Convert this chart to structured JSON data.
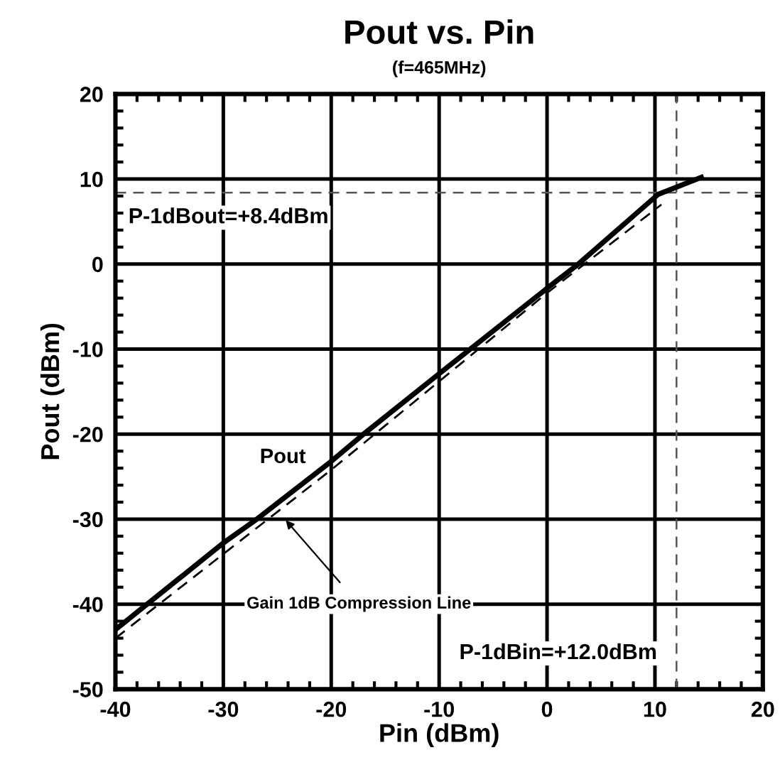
{
  "chart_data": {
    "type": "line",
    "title": "Pout vs. Pin",
    "subtitle": "(f=465MHz)",
    "xlabel": "Pin (dBm)",
    "ylabel": "Pout (dBm)",
    "series": [
      {
        "color": "#000000",
        "line_style": "solid",
        "x": [
          -40,
          -30,
          -27,
          -20,
          -17.1,
          -9.9,
          0.15,
          2.9,
          10.3,
          14.3
        ],
        "values": [
          -43,
          -32.8,
          -30.1,
          -23.2,
          -20.1,
          -12.8,
          -2.7,
          0,
          8.2,
          10.2
        ]
      },
      {
        "color": "#000000",
        "line_style": "dashed",
        "x": [
          -40,
          -20,
          0,
          10.6
        ],
        "values": [
          -44,
          -24.2,
          -3.4,
          7
        ]
      }
    ],
    "annotations": [
      "Pout",
      "Gain 1dB Compression Line"
    ],
    "ref_lines": [
      {
        "axis": "y",
        "value": 8.4,
        "label": "P-1dBout=+8.4dBm",
        "line_style": "dashed",
        "color": "#555555"
      },
      {
        "axis": "x",
        "value": 12,
        "label": "P-1dBin=+12.0dBm",
        "line_style": "dashed",
        "color": "#555555"
      }
    ],
    "xlim": [
      -40,
      20
    ],
    "ylim": [
      -50,
      20
    ],
    "xticks": [
      -40,
      -30,
      -20,
      -10,
      0,
      10,
      20
    ],
    "yticks": [
      -50,
      -40,
      -30,
      -20,
      -10,
      0,
      10,
      20
    ],
    "grid": true,
    "legend": false,
    "marker": "none"
  }
}
